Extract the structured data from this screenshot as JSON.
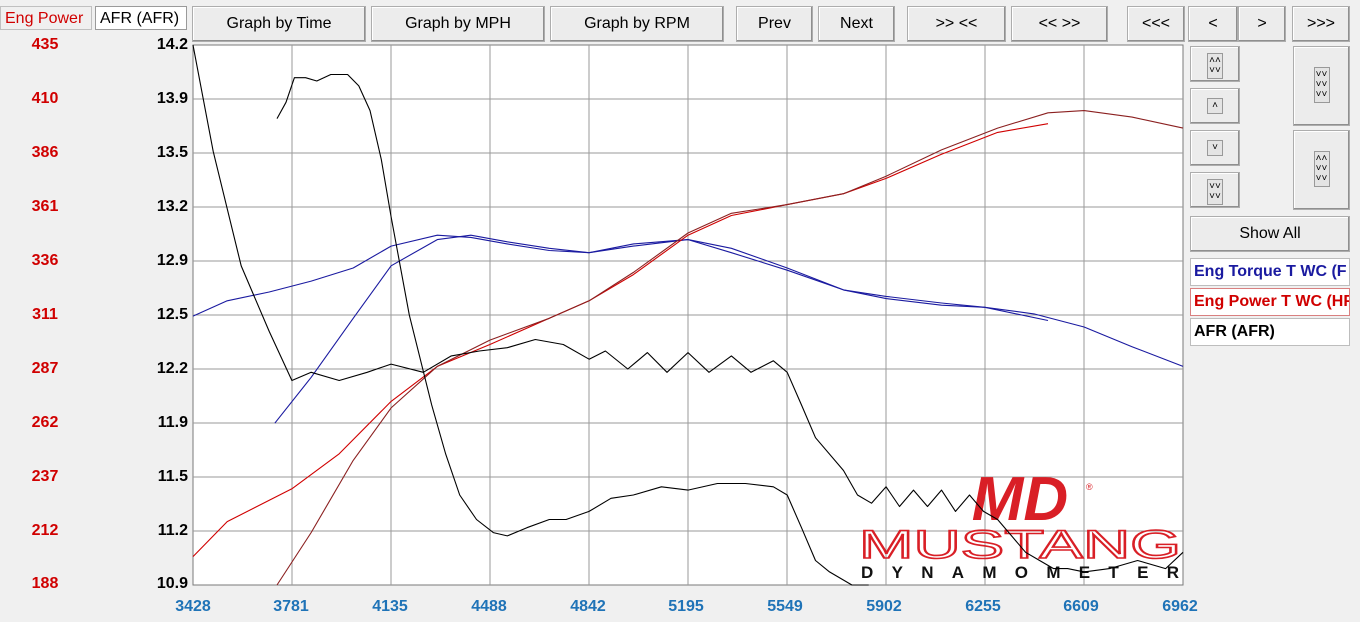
{
  "tabs": [
    {
      "label": "Eng Power",
      "color": "#d00000"
    },
    {
      "label": "AFR (AFR)",
      "color": "#000000"
    }
  ],
  "toolbar": {
    "graph_by_time": "Graph by Time",
    "graph_by_mph": "Graph by MPH",
    "graph_by_rpm": "Graph by RPM",
    "prev": "Prev",
    "next": "Next",
    "zoom_in_x": ">> <<",
    "zoom_out_x": "<< >>",
    "first": "<<<",
    "back": "<",
    "forward": ">",
    "last": ">>>"
  },
  "side": {
    "show_all": "Show All",
    "icons": [
      "double-chevron-up-down-icon",
      "chevron-up-icon",
      "chevron-down-icon",
      "double-chevron-down-icon",
      "triple-chevron-down-icon",
      "triple-chevron-up-down-icon"
    ]
  },
  "legend": [
    {
      "label": "Eng Torque T WC (F",
      "color": "#1a1aa0"
    },
    {
      "label": "Eng Power T WC (HF",
      "color": "#d00000"
    },
    {
      "label": "AFR (AFR)",
      "color": "#000000"
    }
  ],
  "watermark": {
    "brand": "MD",
    "line1": "MUSTANG",
    "line2": "DYNAMOMETER",
    "reg": "®"
  },
  "chart_data": {
    "type": "line",
    "x_ticks": [
      3428,
      3781,
      4135,
      4488,
      4842,
      5195,
      5549,
      5902,
      6255,
      6609,
      6962
    ],
    "left_ticks": [
      435,
      410,
      386,
      361,
      336,
      311,
      287,
      262,
      237,
      212,
      188
    ],
    "right_ticks": [
      14.2,
      13.9,
      13.5,
      13.2,
      12.9,
      12.5,
      12.2,
      11.9,
      11.5,
      11.2,
      10.9
    ],
    "xlim": [
      3428,
      6962
    ],
    "ylim_left": [
      188,
      435
    ],
    "ylim_right": [
      10.9,
      14.2
    ],
    "grid": true,
    "series": [
      {
        "name": "Eng Torque T WC (F",
        "color": "#1a1aa0",
        "axis": "left",
        "x": [
          3428,
          3550,
          3700,
          3850,
          4000,
          4135,
          4300,
          4420,
          4550,
          4700,
          4842,
          5000,
          5195,
          5350,
          5549,
          5750,
          5902,
          6100,
          6255,
          6480
        ],
        "y": [
          311,
          318,
          322,
          327,
          333,
          343,
          348,
          347,
          344,
          341,
          340,
          343,
          346,
          342,
          333,
          323,
          320,
          317,
          315,
          309
        ]
      },
      {
        "name": "",
        "color": "#1a1aa0",
        "axis": "left",
        "x": [
          3720,
          3850,
          4000,
          4135,
          4300,
          4420,
          4550,
          4700,
          4842,
          5000,
          5195,
          5350,
          5549,
          5750,
          5902,
          6100,
          6255,
          6430,
          6609,
          6780,
          6962
        ],
        "y": [
          262,
          283,
          310,
          334,
          346,
          348,
          345,
          342,
          340,
          344,
          346,
          340,
          332,
          323,
          319,
          316,
          315,
          312,
          306,
          297,
          288
        ]
      },
      {
        "name": "Eng Power T WC (HF",
        "color": "#d00000",
        "axis": "left",
        "x": [
          3428,
          3550,
          3781,
          3950,
          4135,
          4300,
          4488,
          4700,
          4842,
          5000,
          5195,
          5350,
          5549,
          5750,
          5902,
          6100,
          6300,
          6480
        ],
        "y": [
          201,
          217,
          232,
          248,
          272,
          288,
          298,
          310,
          318,
          330,
          348,
          357,
          362,
          367,
          374,
          385,
          395,
          399
        ]
      },
      {
        "name": "",
        "color": "#8b2020",
        "axis": "left",
        "x": [
          3728,
          3850,
          4000,
          4135,
          4300,
          4488,
          4700,
          4842,
          5000,
          5195,
          5350,
          5549,
          5750,
          5902,
          6100,
          6300,
          6480,
          6609,
          6780,
          6962
        ],
        "y": [
          188,
          212,
          245,
          269,
          288,
          300,
          310,
          318,
          331,
          349,
          358,
          362,
          367,
          375,
          387,
          397,
          404,
          405,
          402,
          397
        ]
      },
      {
        "name": "AFR (AFR)",
        "color": "#000000",
        "axis": "right",
        "x": [
          3428,
          3500,
          3600,
          3700,
          3781,
          3850,
          3950,
          4050,
          4135,
          4250,
          4350,
          4450,
          4550,
          4650,
          4750,
          4842,
          4900,
          4980,
          5050,
          5120,
          5195,
          5270,
          5350,
          5420,
          5500,
          5549,
          5600,
          5650,
          5750,
          5800,
          5850,
          5902,
          5950,
          6000,
          6050,
          6100,
          6150,
          6200,
          6250,
          6300,
          6350,
          6400,
          6450,
          6500,
          6550,
          6609,
          6700,
          6800,
          6900,
          6962
        ],
        "y": [
          14.2,
          13.55,
          12.85,
          12.45,
          12.15,
          12.2,
          12.15,
          12.2,
          12.25,
          12.2,
          12.3,
          12.33,
          12.35,
          12.4,
          12.37,
          12.28,
          12.33,
          12.22,
          12.32,
          12.2,
          12.32,
          12.2,
          12.3,
          12.2,
          12.27,
          12.2,
          12.0,
          11.8,
          11.6,
          11.45,
          11.4,
          11.5,
          11.38,
          11.48,
          11.38,
          11.48,
          11.35,
          11.45,
          11.35,
          11.3,
          11.2,
          11.1,
          11.05,
          11.0,
          11.0,
          10.98,
          11.0,
          11.05,
          11.0,
          11.1
        ]
      },
      {
        "name": "",
        "color": "#000000",
        "axis": "right",
        "x": [
          3728,
          3760,
          3790,
          3830,
          3870,
          3920,
          3980,
          4020,
          4060,
          4100,
          4135,
          4200,
          4280,
          4330,
          4380,
          4440,
          4500,
          4550,
          4620,
          4700,
          4760,
          4842,
          4920,
          5000,
          5100,
          5195,
          5300,
          5400,
          5500,
          5549,
          5600,
          5650,
          5700,
          5780,
          5840
        ],
        "y": [
          13.75,
          13.85,
          14.0,
          14.0,
          13.98,
          14.02,
          14.02,
          13.95,
          13.8,
          13.5,
          13.15,
          12.55,
          12.0,
          11.7,
          11.45,
          11.3,
          11.22,
          11.2,
          11.25,
          11.3,
          11.3,
          11.35,
          11.43,
          11.45,
          11.5,
          11.48,
          11.52,
          11.52,
          11.5,
          11.45,
          11.25,
          11.05,
          10.98,
          10.9,
          10.85
        ]
      }
    ]
  }
}
